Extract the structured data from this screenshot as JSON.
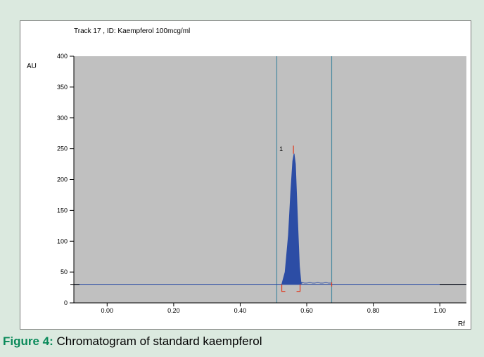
{
  "chart_data": {
    "type": "line",
    "title": "Track  17 , ID: Kaempferol 100mcg/ml",
    "ylabel": "AU",
    "xlabel": "Rf",
    "xlim": [
      -0.1,
      1.08
    ],
    "ylim": [
      0,
      400
    ],
    "x_ticks": [
      "0.00",
      "0.20",
      "0.40",
      "0.60",
      "0.80",
      "1.00"
    ],
    "y_ticks": [
      "0",
      "50",
      "100",
      "150",
      "200",
      "250",
      "300",
      "350",
      "400"
    ],
    "baseline": 30,
    "x_range_markers": [
      0.51,
      0.675
    ],
    "integration_bounds": [
      0.525,
      0.58
    ],
    "peaks": [
      {
        "label": "1",
        "rf": 0.56,
        "height": 255,
        "area_max": 242
      }
    ],
    "series": [
      {
        "x": [
          -0.1,
          0.5,
          0.525,
          0.535,
          0.545,
          0.552,
          0.558,
          0.562,
          0.566,
          0.572,
          0.578,
          0.583,
          0.6,
          0.675,
          1.08
        ],
        "y": [
          30,
          30,
          30,
          50,
          110,
          180,
          230,
          242,
          225,
          140,
          60,
          31,
          32,
          32,
          30
        ]
      }
    ],
    "colors": {
      "plot_bg": "#c0c0c0",
      "fill": "#2c4da5",
      "baseline": "#2c4da5",
      "markers": "#4a8aa0",
      "peak_marker": "#e03a1e"
    }
  },
  "caption": {
    "label": "Figure 4:",
    "text": " Chromatogram of standard kaempferol"
  }
}
